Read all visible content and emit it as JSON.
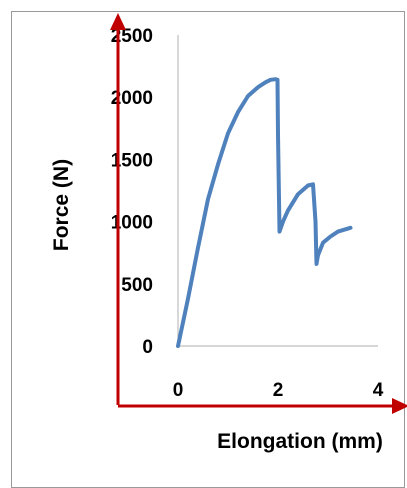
{
  "chart_data": {
    "type": "line",
    "title": "",
    "xlabel": "Elongation (mm)",
    "ylabel": "Force (N)",
    "xlim": [
      0,
      4
    ],
    "ylim": [
      0,
      2500
    ],
    "xticks": [
      0,
      2,
      4
    ],
    "xtick_labels": [
      "0",
      "2",
      "4"
    ],
    "yticks": [
      0,
      500,
      1000,
      1500,
      2000,
      2500
    ],
    "ytick_labels": [
      "0",
      "500",
      "1000",
      "1500",
      "2000",
      "2500"
    ],
    "grid": false,
    "legend": "none",
    "series": [
      {
        "color": "#4f81bd",
        "x": [
          0.0,
          0.2,
          0.4,
          0.6,
          0.8,
          1.0,
          1.2,
          1.4,
          1.6,
          1.75,
          1.85,
          1.95,
          1.99,
          2.0,
          2.03,
          2.1,
          2.2,
          2.4,
          2.6,
          2.7,
          2.75,
          2.77,
          2.8,
          2.9,
          3.05,
          3.2,
          3.45
        ],
        "y": [
          0,
          380,
          790,
          1180,
          1460,
          1710,
          1880,
          2010,
          2080,
          2120,
          2140,
          2145,
          2140,
          1700,
          920,
          1000,
          1090,
          1220,
          1290,
          1300,
          1000,
          660,
          730,
          830,
          880,
          920,
          950
        ]
      }
    ],
    "colors": {
      "series": "#4f81bd",
      "axis_arrows": "#c00000",
      "axis_lines": "#bfbfbf",
      "frame": "#999999"
    }
  }
}
